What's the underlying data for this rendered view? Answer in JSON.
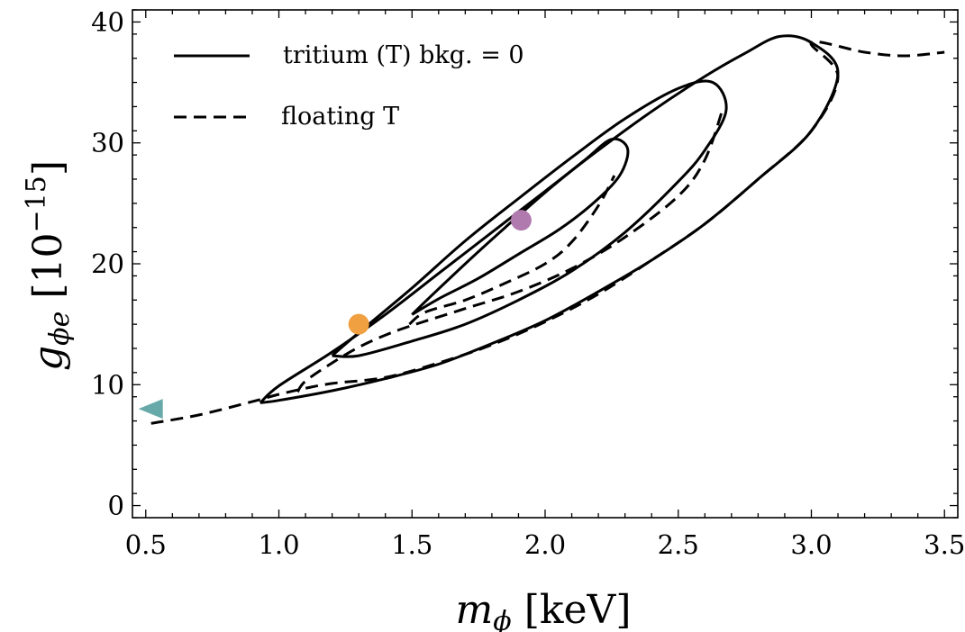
{
  "chart_data": {
    "type": "line",
    "xlabel": "m_ϕ [keV]",
    "ylabel": "g_ϕe [10^−15]",
    "xlim": [
      0.45,
      3.55
    ],
    "ylim": [
      -1,
      41
    ],
    "x_ticks": [
      0.5,
      1.0,
      1.5,
      2.0,
      2.5,
      3.0,
      3.5
    ],
    "x_tick_labels": [
      "0.5",
      "1.0",
      "1.5",
      "2.0",
      "2.5",
      "3.0",
      "3.5"
    ],
    "y_ticks": [
      0,
      10,
      20,
      30,
      40
    ],
    "y_tick_labels": [
      "0",
      "10",
      "20",
      "30",
      "40"
    ],
    "grid": false,
    "legend": {
      "placement": "top-left",
      "entries": [
        {
          "label": "tritium (T) bkg. = 0",
          "style": "solid"
        },
        {
          "label": "floating T",
          "style": "dashed"
        }
      ]
    },
    "series": [
      {
        "name": "tritium (T) bkg. = 0",
        "style": "solid",
        "color": "#000000",
        "points": [
          [
            1.5,
            15.8
          ],
          [
            1.57,
            17.3
          ],
          [
            1.7,
            20.0
          ],
          [
            1.85,
            23.0
          ],
          [
            2.0,
            25.9
          ],
          [
            2.15,
            28.6
          ],
          [
            2.25,
            30.3
          ],
          [
            2.31,
            29.5
          ],
          [
            2.28,
            27.3
          ],
          [
            2.18,
            25.0
          ],
          [
            2.05,
            22.8
          ],
          [
            1.9,
            20.8
          ],
          [
            1.75,
            18.8
          ],
          [
            1.6,
            17.1
          ],
          [
            1.5,
            15.8
          ]
        ]
      },
      {
        "name": "tritium (T) bkg. = 0",
        "style": "solid",
        "color": "#000000",
        "points": [
          [
            1.2,
            12.4
          ],
          [
            1.3,
            14.3
          ],
          [
            1.5,
            18.0
          ],
          [
            1.7,
            21.9
          ],
          [
            1.9,
            25.4
          ],
          [
            2.1,
            28.8
          ],
          [
            2.3,
            32.0
          ],
          [
            2.5,
            34.5
          ],
          [
            2.63,
            35.0
          ],
          [
            2.68,
            32.7
          ],
          [
            2.6,
            29.4
          ],
          [
            2.5,
            26.8
          ],
          [
            2.3,
            22.6
          ],
          [
            2.1,
            19.4
          ],
          [
            1.9,
            17.0
          ],
          [
            1.7,
            15.0
          ],
          [
            1.5,
            13.6
          ],
          [
            1.3,
            12.4
          ],
          [
            1.2,
            12.4
          ]
        ]
      },
      {
        "name": "tritium (T) bkg. = 0",
        "style": "solid",
        "color": "#000000",
        "points": [
          [
            0.93,
            8.5
          ],
          [
            1.0,
            9.9
          ],
          [
            1.2,
            12.7
          ],
          [
            1.4,
            15.8
          ],
          [
            1.6,
            19.2
          ],
          [
            1.8,
            22.6
          ],
          [
            2.0,
            26.0
          ],
          [
            2.2,
            29.4
          ],
          [
            2.4,
            32.6
          ],
          [
            2.6,
            35.5
          ],
          [
            2.75,
            37.4
          ],
          [
            2.88,
            38.8
          ],
          [
            3.0,
            38.3
          ],
          [
            3.1,
            35.8
          ],
          [
            3.0,
            31.0
          ],
          [
            2.8,
            27.0
          ],
          [
            2.6,
            23.3
          ],
          [
            2.4,
            20.3
          ],
          [
            2.2,
            17.7
          ],
          [
            2.0,
            15.3
          ],
          [
            1.8,
            13.4
          ],
          [
            1.6,
            11.7
          ],
          [
            1.4,
            10.5
          ],
          [
            1.2,
            9.5
          ],
          [
            1.0,
            8.7
          ],
          [
            0.93,
            8.5
          ]
        ]
      },
      {
        "name": "floating T",
        "style": "dashed",
        "color": "#000000",
        "points": [
          [
            1.49,
            15.0
          ],
          [
            1.55,
            16.0
          ],
          [
            1.7,
            17.0
          ],
          [
            1.85,
            18.4
          ],
          [
            2.0,
            20.0
          ],
          [
            2.1,
            21.8
          ],
          [
            2.2,
            24.8
          ],
          [
            2.26,
            27.3
          ]
        ]
      },
      {
        "name": "floating T",
        "style": "dashed",
        "color": "#000000",
        "points": [
          [
            1.07,
            9.4
          ],
          [
            1.1,
            10.3
          ],
          [
            1.2,
            11.8
          ],
          [
            1.3,
            13.1
          ],
          [
            1.4,
            14.1
          ],
          [
            1.5,
            14.9
          ],
          [
            1.7,
            16.3
          ],
          [
            1.9,
            17.7
          ],
          [
            2.1,
            19.6
          ],
          [
            2.3,
            22.2
          ],
          [
            2.5,
            25.6
          ],
          [
            2.6,
            28.6
          ],
          [
            2.67,
            33.0
          ]
        ]
      },
      {
        "name": "floating T",
        "style": "dashed",
        "color": "#000000",
        "points": [
          [
            0.52,
            6.8
          ],
          [
            0.7,
            7.5
          ],
          [
            0.9,
            8.6
          ],
          [
            1.0,
            9.2
          ],
          [
            1.1,
            9.7
          ],
          [
            1.2,
            10.1
          ],
          [
            1.4,
            10.6
          ],
          [
            1.6,
            11.8
          ],
          [
            1.8,
            13.3
          ],
          [
            2.0,
            15.2
          ],
          [
            2.2,
            17.5
          ],
          [
            2.4,
            20.3
          ],
          [
            2.6,
            23.3
          ],
          [
            2.8,
            27.0
          ],
          [
            3.0,
            31.0
          ],
          [
            3.1,
            35.5
          ],
          [
            3.0,
            38.3
          ],
          [
            3.2,
            37.5
          ],
          [
            3.35,
            37.2
          ],
          [
            3.5,
            37.5
          ]
        ]
      }
    ],
    "markers": [
      {
        "shape": "circle",
        "x": 1.91,
        "y": 23.6,
        "color": "#b07aaf"
      },
      {
        "shape": "circle",
        "x": 1.3,
        "y": 15.0,
        "color": "#f0a040"
      },
      {
        "shape": "triangle-left",
        "x": 0.52,
        "y": 8.0,
        "color": "#67a9a9"
      }
    ]
  }
}
